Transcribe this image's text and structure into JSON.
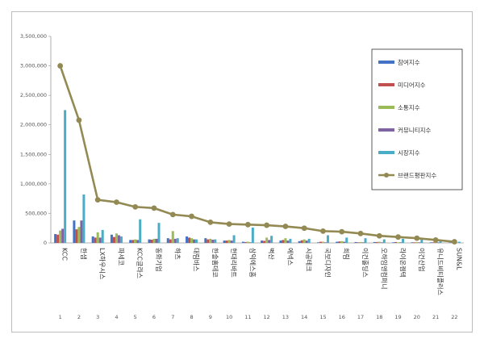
{
  "chart_data": {
    "type": "bar",
    "title": "",
    "xlabel": "",
    "ylabel": "",
    "ylim": [
      0,
      3500000
    ],
    "y_ticks": [
      0,
      500000,
      1000000,
      1500000,
      2000000,
      2500000,
      3000000,
      3500000
    ],
    "y_tick_labels": [
      "0",
      "500,000",
      "1,000,000",
      "1,500,000",
      "2,000,000",
      "2,500,000",
      "3,000,000",
      "3,500,000"
    ],
    "grid": false,
    "legend_position": "right",
    "categories": [
      "KCC",
      "한샘",
      "LX하우시스",
      "파세코",
      "KCC글라스",
      "동화기업",
      "하츠",
      "대림바스",
      "한솔홈데코",
      "현대리바트",
      "삼익에스홈",
      "벽산",
      "에넥스",
      "시공테크",
      "국보디자인",
      "희림",
      "이건홀딩스",
      "오하임앤컴퍼니",
      "라이온켐텍",
      "이건산업",
      "유니드비티플러스",
      "SUN&L"
    ],
    "ranks": [
      "1",
      "2",
      "3",
      "4",
      "5",
      "6",
      "7",
      "8",
      "9",
      "10",
      "11",
      "12",
      "13",
      "14",
      "15",
      "16",
      "17",
      "18",
      "19",
      "20",
      "21",
      "22"
    ],
    "series": [
      {
        "name": "참여지수",
        "color": "#4472c4",
        "values": [
          150000,
          380000,
          110000,
          140000,
          50000,
          60000,
          80000,
          110000,
          80000,
          40000,
          20000,
          40000,
          40000,
          30000,
          10000,
          20000,
          15000,
          15000,
          10000,
          10000,
          10000,
          5000
        ]
      },
      {
        "name": "미디어지수",
        "color": "#c0504d",
        "values": [
          140000,
          230000,
          90000,
          100000,
          50000,
          55000,
          60000,
          90000,
          60000,
          40000,
          15000,
          35000,
          50000,
          45000,
          20000,
          25000,
          10000,
          15000,
          15000,
          10000,
          10000,
          5000
        ]
      },
      {
        "name": "소통지수",
        "color": "#9bbb59",
        "values": [
          210000,
          270000,
          180000,
          160000,
          60000,
          70000,
          200000,
          80000,
          70000,
          50000,
          20000,
          90000,
          80000,
          60000,
          20000,
          30000,
          15000,
          20000,
          10000,
          15000,
          10000,
          5000
        ]
      },
      {
        "name": "커뮤니티지수",
        "color": "#8064a2",
        "values": [
          240000,
          380000,
          90000,
          130000,
          50000,
          70000,
          70000,
          60000,
          55000,
          40000,
          10000,
          50000,
          40000,
          40000,
          10000,
          20000,
          10000,
          10000,
          10000,
          10000,
          10000,
          5000
        ]
      },
      {
        "name": "시장지수",
        "color": "#4bacc6",
        "values": [
          2250000,
          820000,
          220000,
          110000,
          400000,
          340000,
          80000,
          60000,
          60000,
          130000,
          260000,
          120000,
          70000,
          70000,
          130000,
          90000,
          80000,
          60000,
          70000,
          70000,
          40000,
          20000
        ]
      }
    ],
    "line_series": {
      "name": "브랜드평판지수",
      "color": "#938953",
      "values": [
        3000000,
        2080000,
        730000,
        690000,
        610000,
        590000,
        480000,
        450000,
        350000,
        320000,
        310000,
        300000,
        280000,
        250000,
        200000,
        190000,
        160000,
        120000,
        100000,
        80000,
        50000,
        20000
      ]
    }
  }
}
